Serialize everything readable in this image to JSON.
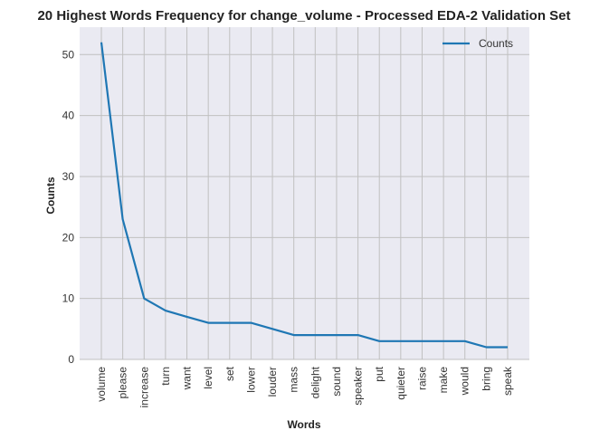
{
  "chart_data": {
    "type": "line",
    "title": "20 Highest Words Frequency for change_volume - Processed EDA-2 Validation Set",
    "xlabel": "Words",
    "ylabel": "Counts",
    "categories": [
      "volume",
      "please",
      "increase",
      "turn",
      "want",
      "level",
      "set",
      "lower",
      "louder",
      "mass",
      "delight",
      "sound",
      "speaker",
      "put",
      "quieter",
      "raise",
      "make",
      "would",
      "bring",
      "speak"
    ],
    "series": [
      {
        "name": "Counts",
        "values": [
          52,
          23,
          10,
          8,
          7,
          6,
          6,
          6,
          5,
          4,
          4,
          4,
          4,
          3,
          3,
          3,
          3,
          3,
          2,
          2
        ],
        "color": "#1f77b4"
      }
    ],
    "ylim": [
      0,
      54.5
    ],
    "yticks": [
      "0",
      "10",
      "20",
      "30",
      "40",
      "50"
    ],
    "grid": true,
    "legend": "top-right",
    "plot_background": "#eaeaf2",
    "grid_color": "#c0c0c0"
  }
}
